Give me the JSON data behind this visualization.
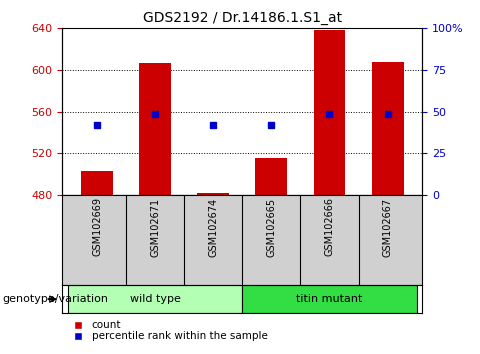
{
  "title": "GDS2192 / Dr.14186.1.S1_at",
  "samples": [
    "GSM102669",
    "GSM102671",
    "GSM102674",
    "GSM102665",
    "GSM102666",
    "GSM102667"
  ],
  "counts": [
    503,
    607,
    482,
    515,
    638,
    608
  ],
  "percentile_vals": [
    547,
    558,
    547,
    547,
    558,
    558
  ],
  "ylim_left": [
    480,
    640
  ],
  "yticks_left": [
    480,
    520,
    560,
    600,
    640
  ],
  "ylim_right": [
    0,
    100
  ],
  "yticks_right": [
    0,
    25,
    50,
    75,
    100
  ],
  "bar_color": "#cc0000",
  "marker_color": "#0000cc",
  "bar_width": 0.55,
  "group_wt_label": "wild type",
  "group_tm_label": "titin mutant",
  "group_wt_color": "#b3ffb3",
  "group_tm_color": "#33dd44",
  "group_label": "genotype/variation",
  "legend_count": "count",
  "legend_percentile": "percentile rank within the sample",
  "title_fontsize": 10,
  "tick_fontsize": 8,
  "label_fontsize": 8,
  "sample_fontsize": 7,
  "background_color": "#ffffff",
  "grid_color": "#000000",
  "left_tick_color": "#cc0000",
  "right_tick_color": "#0000cc",
  "sample_bg_color": "#d0d0d0",
  "sample_divider_color": "#888888"
}
